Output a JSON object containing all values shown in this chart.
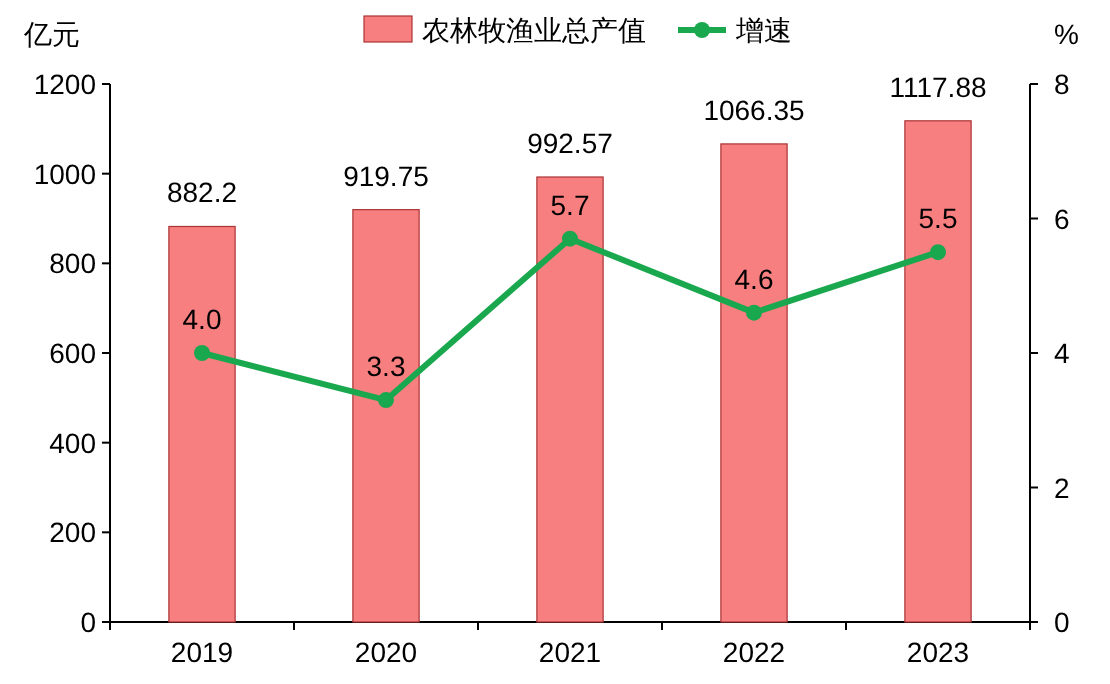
{
  "chart_data": {
    "type": "bar",
    "categories": [
      "2019",
      "2020",
      "2021",
      "2022",
      "2023"
    ],
    "ylabel": "亿元",
    "y2label": "%",
    "ylim": [
      0,
      1200
    ],
    "yticks": [
      0,
      200,
      400,
      600,
      800,
      1000,
      1200
    ],
    "y2lim": [
      0,
      8
    ],
    "y2ticks": [
      0,
      2,
      4,
      6,
      8
    ],
    "legend": "top",
    "series": [
      {
        "name": "农林牧渔业总产值",
        "color": "#f77f7f",
        "values": [
          882.2,
          919.75,
          992.57,
          1066.35,
          1117.88
        ],
        "value_labels": [
          "882.2",
          "919.75",
          "992.57",
          "1066.35",
          "1117.88"
        ]
      },
      {
        "name": "增速",
        "type": "line",
        "axis": "y2",
        "marker": "circle",
        "color": "#1aa84f",
        "values": [
          4.0,
          3.3,
          5.7,
          4.6,
          5.5
        ],
        "value_labels": [
          "4.0",
          "3.3",
          "5.7",
          "4.6",
          "5.5"
        ]
      }
    ]
  }
}
